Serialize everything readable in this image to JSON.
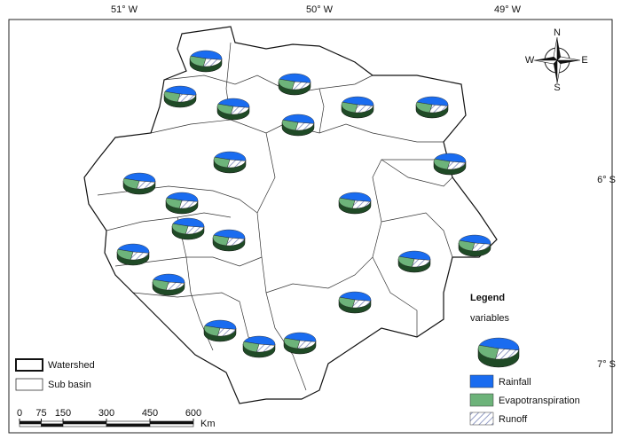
{
  "map": {
    "longitude_labels": [
      "51° W",
      "50° W",
      "49° W"
    ],
    "latitude_labels": [
      "6° S",
      "7° S"
    ],
    "compass": {
      "n": "N",
      "s": "S",
      "e": "E",
      "w": "W"
    },
    "legend": {
      "title": "Legend",
      "subtitle": "variables",
      "items": [
        "Rainfall",
        "Evapotranspiration",
        "Runoff"
      ]
    },
    "boundary_legend": [
      "Watershed",
      "Sub basin"
    ],
    "scale": {
      "ticks": [
        0,
        75,
        150,
        300,
        450,
        600
      ],
      "unit": "Km"
    }
  }
}
